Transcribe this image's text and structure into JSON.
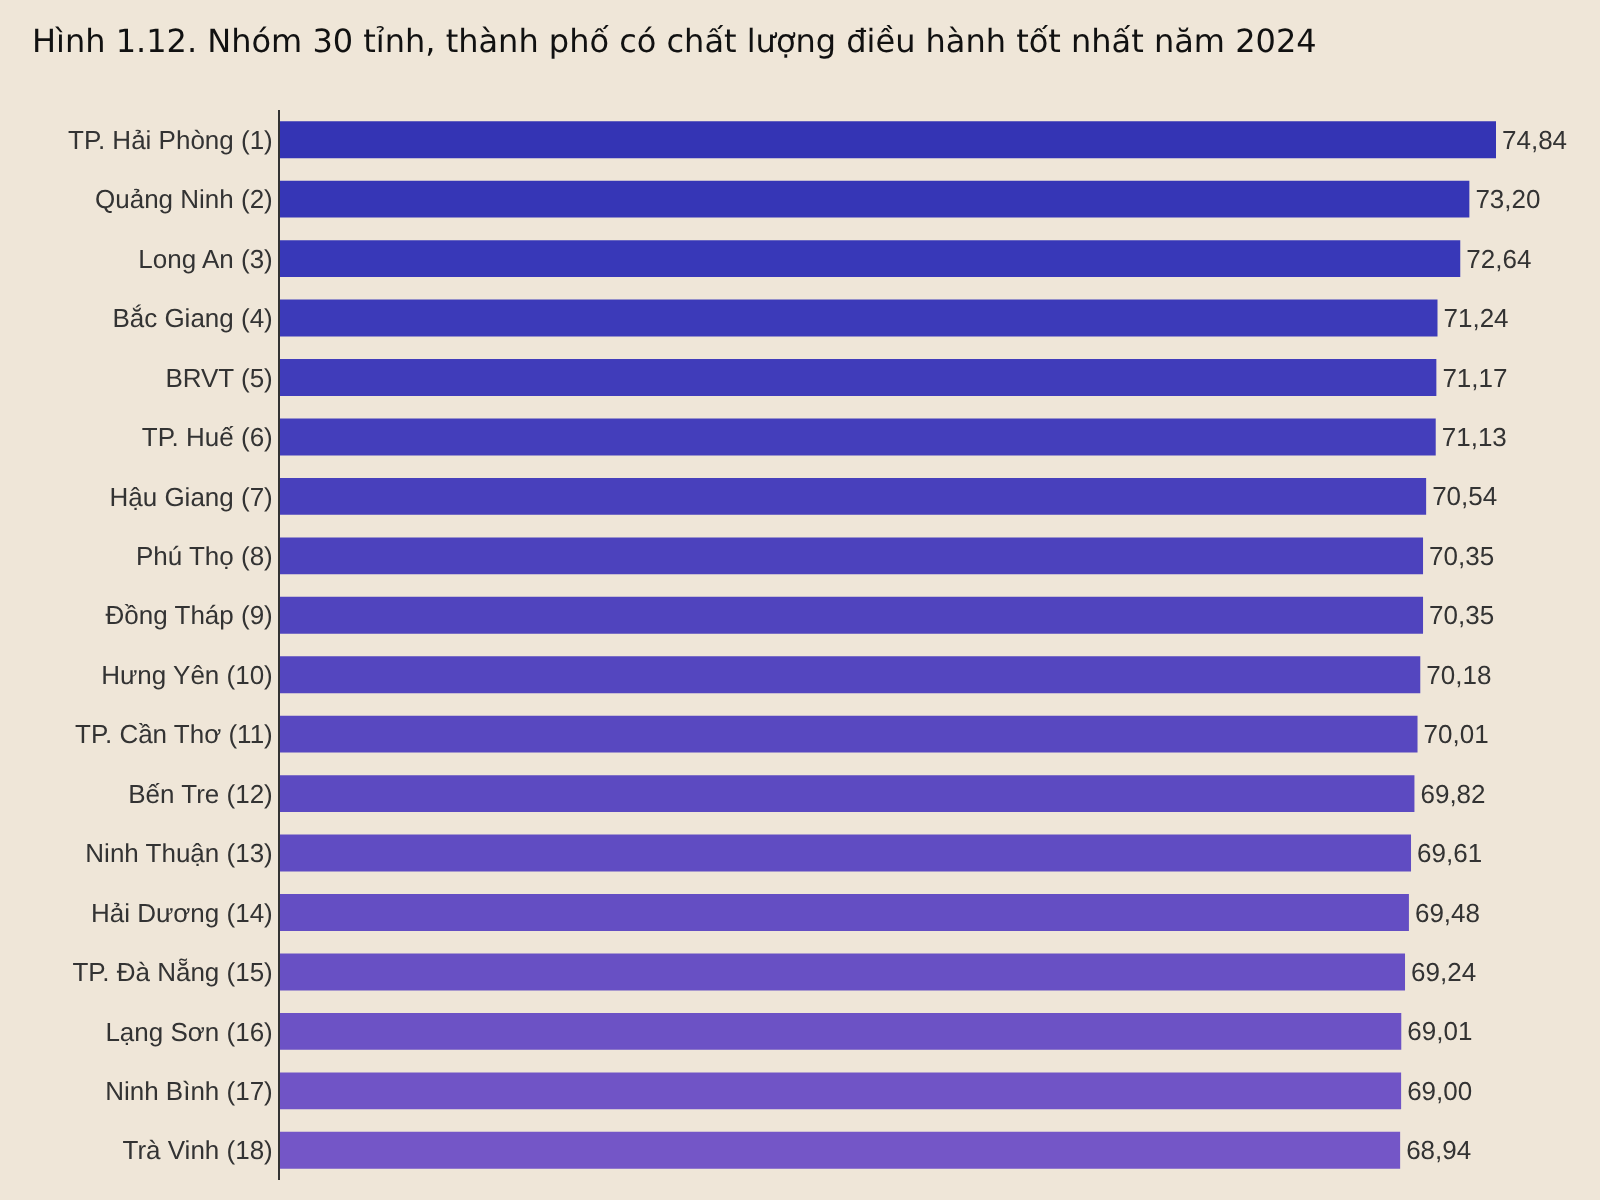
{
  "chart_data": {
    "type": "bar",
    "orientation": "horizontal",
    "title": "Hình 1.12. Nhóm 30 tỉnh, thành phố có chất lượng điều hành tốt nhất năm 2024",
    "categories": [
      "TP. Hải Phòng (1)",
      "Quảng Ninh (2)",
      "Long An (3)",
      "Bắc Giang (4)",
      "BRVT (5)",
      "TP. Huế (6)",
      "Hậu Giang (7)",
      "Phú Thọ (8)",
      "Đồng Tháp (9)",
      "Hưng Yên (10)",
      "TP. Cần Thơ (11)",
      "Bến Tre (12)",
      "Ninh Thuận (13)",
      "Hải Dương (14)",
      "TP. Đà Nẵng (15)",
      "Lạng Sơn (16)",
      "Ninh Bình (17)",
      "Trà Vinh (18)"
    ],
    "values": [
      74.84,
      73.2,
      72.64,
      71.24,
      71.17,
      71.13,
      70.54,
      70.35,
      70.35,
      70.18,
      70.01,
      69.82,
      69.61,
      69.48,
      69.24,
      69.01,
      69.0,
      68.94
    ],
    "value_labels": [
      "74,84",
      "73,20",
      "72,64",
      "71,24",
      "71,17",
      "71,13",
      "70,54",
      "70,35",
      "70,35",
      "70,18",
      "70,01",
      "69,82",
      "69,61",
      "69,48",
      "69,24",
      "69,01",
      "69,00",
      "68,94"
    ],
    "colors": [
      "#3434b4",
      "#3636b6",
      "#3838b8",
      "#3c3ab9",
      "#403cba",
      "#443ebb",
      "#4840bc",
      "#4c42bd",
      "#5044be",
      "#5446bf",
      "#5848c0",
      "#5c4ac1",
      "#604cc2",
      "#644ec3",
      "#6850c4",
      "#6c52c5",
      "#7054c6",
      "#7456c7"
    ],
    "tick_labels": "y"
  }
}
